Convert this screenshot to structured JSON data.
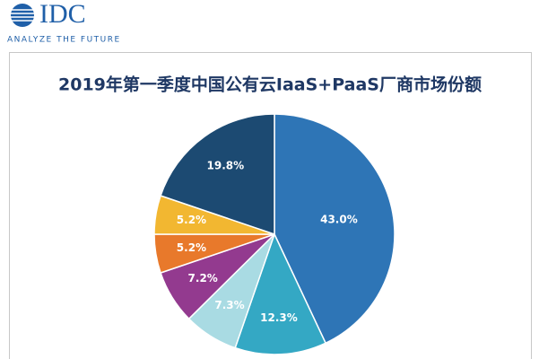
{
  "logo": {
    "name": "IDC",
    "tagline": "ANALYZE THE FUTURE"
  },
  "chart_data": {
    "type": "pie",
    "title": "2019年第一季度中国公有云IaaS+PaaS厂商市场份额",
    "values": [
      43.0,
      12.3,
      7.3,
      7.2,
      5.2,
      5.2,
      19.8
    ],
    "value_labels": [
      "43.0%",
      "12.3%",
      "7.3%",
      "7.2%",
      "5.2%",
      "5.2%",
      "19.8%"
    ],
    "colors": [
      "#2e75b6",
      "#34a8c4",
      "#a9dbe3",
      "#933a8f",
      "#e8792b",
      "#f2b731",
      "#1c4a72"
    ]
  }
}
